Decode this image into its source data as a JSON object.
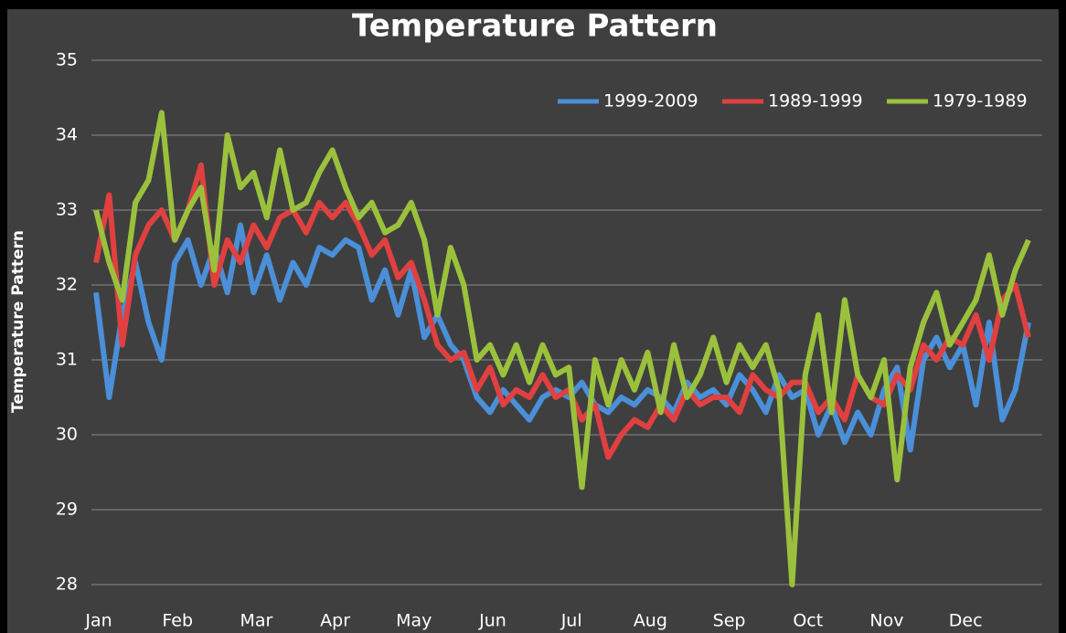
{
  "chart_data": {
    "type": "line",
    "title": "Temperature Pattern",
    "y_label": "Temperature Pattern",
    "categories": [
      "Jan",
      null,
      null,
      null,
      null,
      null,
      "Feb",
      null,
      null,
      null,
      null,
      null,
      "Mar",
      null,
      null,
      null,
      null,
      null,
      "Apr",
      null,
      null,
      null,
      null,
      null,
      "May",
      null,
      null,
      null,
      null,
      null,
      "Jun",
      null,
      null,
      null,
      null,
      null,
      "Jul",
      null,
      null,
      null,
      null,
      null,
      "Aug",
      null,
      null,
      null,
      null,
      null,
      "Sep",
      null,
      null,
      null,
      null,
      null,
      "Oct",
      null,
      null,
      null,
      null,
      null,
      "Nov",
      null,
      null,
      null,
      null,
      null,
      "Dec",
      null,
      null,
      null,
      null,
      null
    ],
    "series": [
      {
        "name": "1999-2009",
        "color": "#4a8fd8",
        "values": [
          31.9,
          30.5,
          31.6,
          32.3,
          31.5,
          31.0,
          32.3,
          32.6,
          32.0,
          32.5,
          31.9,
          32.8,
          31.9,
          32.4,
          31.8,
          32.3,
          32.0,
          32.5,
          32.4,
          32.6,
          32.5,
          31.8,
          32.2,
          31.6,
          32.2,
          31.3,
          31.6,
          31.2,
          31.0,
          30.5,
          30.3,
          30.6,
          30.4,
          30.2,
          30.5,
          30.6,
          30.5,
          30.7,
          30.4,
          30.3,
          30.5,
          30.4,
          30.6,
          30.5,
          30.3,
          30.7,
          30.5,
          30.6,
          30.4,
          30.8,
          30.6,
          30.3,
          30.8,
          30.5,
          30.6,
          30.0,
          30.4,
          29.9,
          30.3,
          30.0,
          30.6,
          30.9,
          29.8,
          31.0,
          31.3,
          30.9,
          31.2,
          30.4,
          31.5,
          30.2,
          30.6,
          31.5
        ]
      },
      {
        "name": "1989-1999",
        "color": "#e04040",
        "values": [
          32.3,
          33.2,
          31.2,
          32.4,
          32.8,
          33.0,
          32.6,
          33.0,
          33.6,
          32.0,
          32.6,
          32.3,
          32.8,
          32.5,
          32.9,
          33.0,
          32.7,
          33.1,
          32.9,
          33.1,
          32.8,
          32.4,
          32.6,
          32.1,
          32.3,
          31.8,
          31.2,
          31.0,
          31.1,
          30.6,
          30.9,
          30.4,
          30.6,
          30.5,
          30.8,
          30.5,
          30.6,
          30.2,
          30.4,
          29.7,
          30.0,
          30.2,
          30.1,
          30.4,
          30.2,
          30.6,
          30.4,
          30.5,
          30.5,
          30.3,
          30.8,
          30.6,
          30.5,
          30.7,
          30.7,
          30.3,
          30.5,
          30.2,
          30.8,
          30.5,
          30.4,
          30.8,
          30.6,
          31.2,
          31.0,
          31.3,
          31.2,
          31.6,
          31.0,
          31.8,
          32.0,
          31.3
        ]
      },
      {
        "name": "1979-1989",
        "color": "#9bc13c",
        "values": [
          33.0,
          32.3,
          31.8,
          33.1,
          33.4,
          34.3,
          32.6,
          33.0,
          33.3,
          32.2,
          34.0,
          33.3,
          33.5,
          32.9,
          33.8,
          33.0,
          33.1,
          33.5,
          33.8,
          33.3,
          32.9,
          33.1,
          32.7,
          32.8,
          33.1,
          32.6,
          31.6,
          32.5,
          32.0,
          31.0,
          31.2,
          30.8,
          31.2,
          30.7,
          31.2,
          30.8,
          30.9,
          29.3,
          31.0,
          30.4,
          31.0,
          30.6,
          31.1,
          30.3,
          31.2,
          30.5,
          30.8,
          31.3,
          30.7,
          31.2,
          30.9,
          31.2,
          30.6,
          28.0,
          30.8,
          31.6,
          30.3,
          31.8,
          30.8,
          30.5,
          31.0,
          29.4,
          30.9,
          31.5,
          31.9,
          31.2,
          31.5,
          31.8,
          32.4,
          31.6,
          32.2,
          32.6
        ]
      }
    ],
    "ylim": [
      28,
      35
    ],
    "yticks": [
      28,
      29,
      30,
      31,
      32,
      33,
      34,
      35
    ],
    "grid": true,
    "legend": "top-right"
  }
}
